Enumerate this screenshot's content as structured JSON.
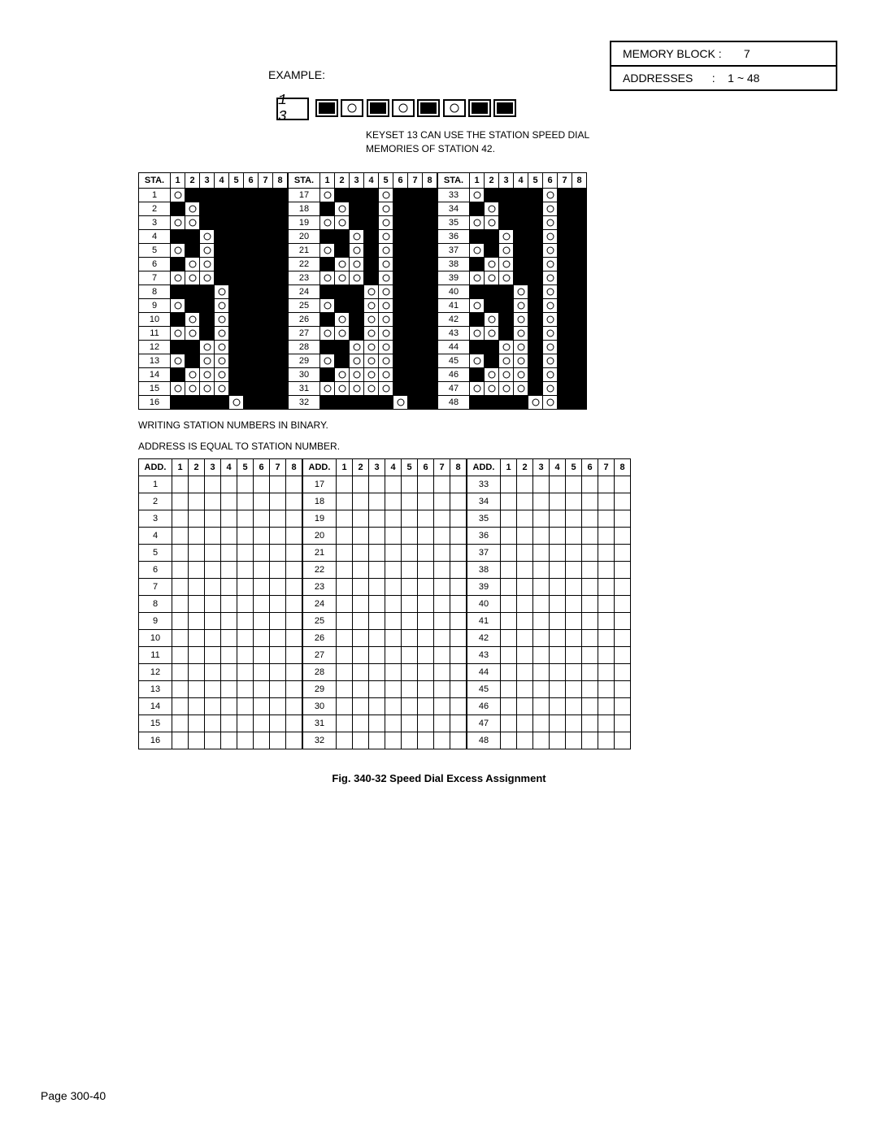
{
  "header": {
    "memory_block_label": "MEMORY BLOCK :",
    "memory_block_value": "7",
    "addresses_label": "ADDRESSES",
    "addresses_sep": ":",
    "addresses_value": "1 ~ 48",
    "example_label": "EXAMPLE:",
    "seg7": "1 3"
  },
  "keyset_pattern": [
    "blk",
    "circ",
    "blk",
    "circ",
    "blk",
    "circ",
    "blk",
    "blk"
  ],
  "caption_line1": "KEYSET 13 CAN USE THE STATION SPEED DIAL",
  "caption_line2": "MEMORIES OF STATION 42.",
  "binary_header_label": "STA.",
  "bit_headers": [
    "1",
    "2",
    "3",
    "4",
    "5",
    "6",
    "7",
    "8"
  ],
  "section_label_1": "WRITING STATION NUMBERS IN BINARY.",
  "section_label_2": "ADDRESS IS EQUAL TO STATION NUMBER.",
  "add_header_label": "ADD.",
  "figure_caption": "Fig. 340-32   Speed Dial Excess Assignment",
  "page_number": "Page 300-40",
  "colors": {
    "ink": "#000000",
    "paper": "#ffffff"
  },
  "station_rows": 48,
  "add_rows": 48
}
